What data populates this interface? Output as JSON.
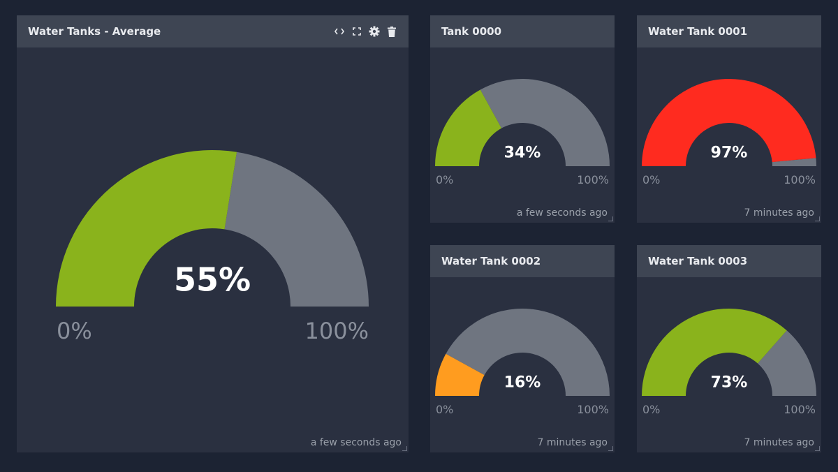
{
  "colors": {
    "background": "#1c2333",
    "panel": "#2a3040",
    "header": "#3e4553",
    "track": "#6f7580",
    "green": "#8ab31c",
    "red": "#ff2b1f",
    "orange": "#ff9c1f"
  },
  "widgets": [
    {
      "title": "Water Tanks - Average",
      "value": 55,
      "value_label": "55%",
      "min_label": "0%",
      "max_label": "100%",
      "fill_color": "#8ab31c",
      "timestamp": "a few seconds ago",
      "toolbar": [
        "code-icon",
        "fullscreen-icon",
        "gear-icon",
        "trash-icon"
      ]
    },
    {
      "title": "Tank 0000",
      "value": 34,
      "value_label": "34%",
      "min_label": "0%",
      "max_label": "100%",
      "fill_color": "#8ab31c",
      "timestamp": "a few seconds ago"
    },
    {
      "title": "Water Tank 0001",
      "value": 97,
      "value_label": "97%",
      "min_label": "0%",
      "max_label": "100%",
      "fill_color": "#ff2b1f",
      "timestamp": "7 minutes ago"
    },
    {
      "title": "Water Tank 0002",
      "value": 16,
      "value_label": "16%",
      "min_label": "0%",
      "max_label": "100%",
      "fill_color": "#ff9c1f",
      "timestamp": "7 minutes ago"
    },
    {
      "title": "Water Tank 0003",
      "value": 73,
      "value_label": "73%",
      "min_label": "0%",
      "max_label": "100%",
      "fill_color": "#8ab31c",
      "timestamp": "7 minutes ago"
    }
  ]
}
